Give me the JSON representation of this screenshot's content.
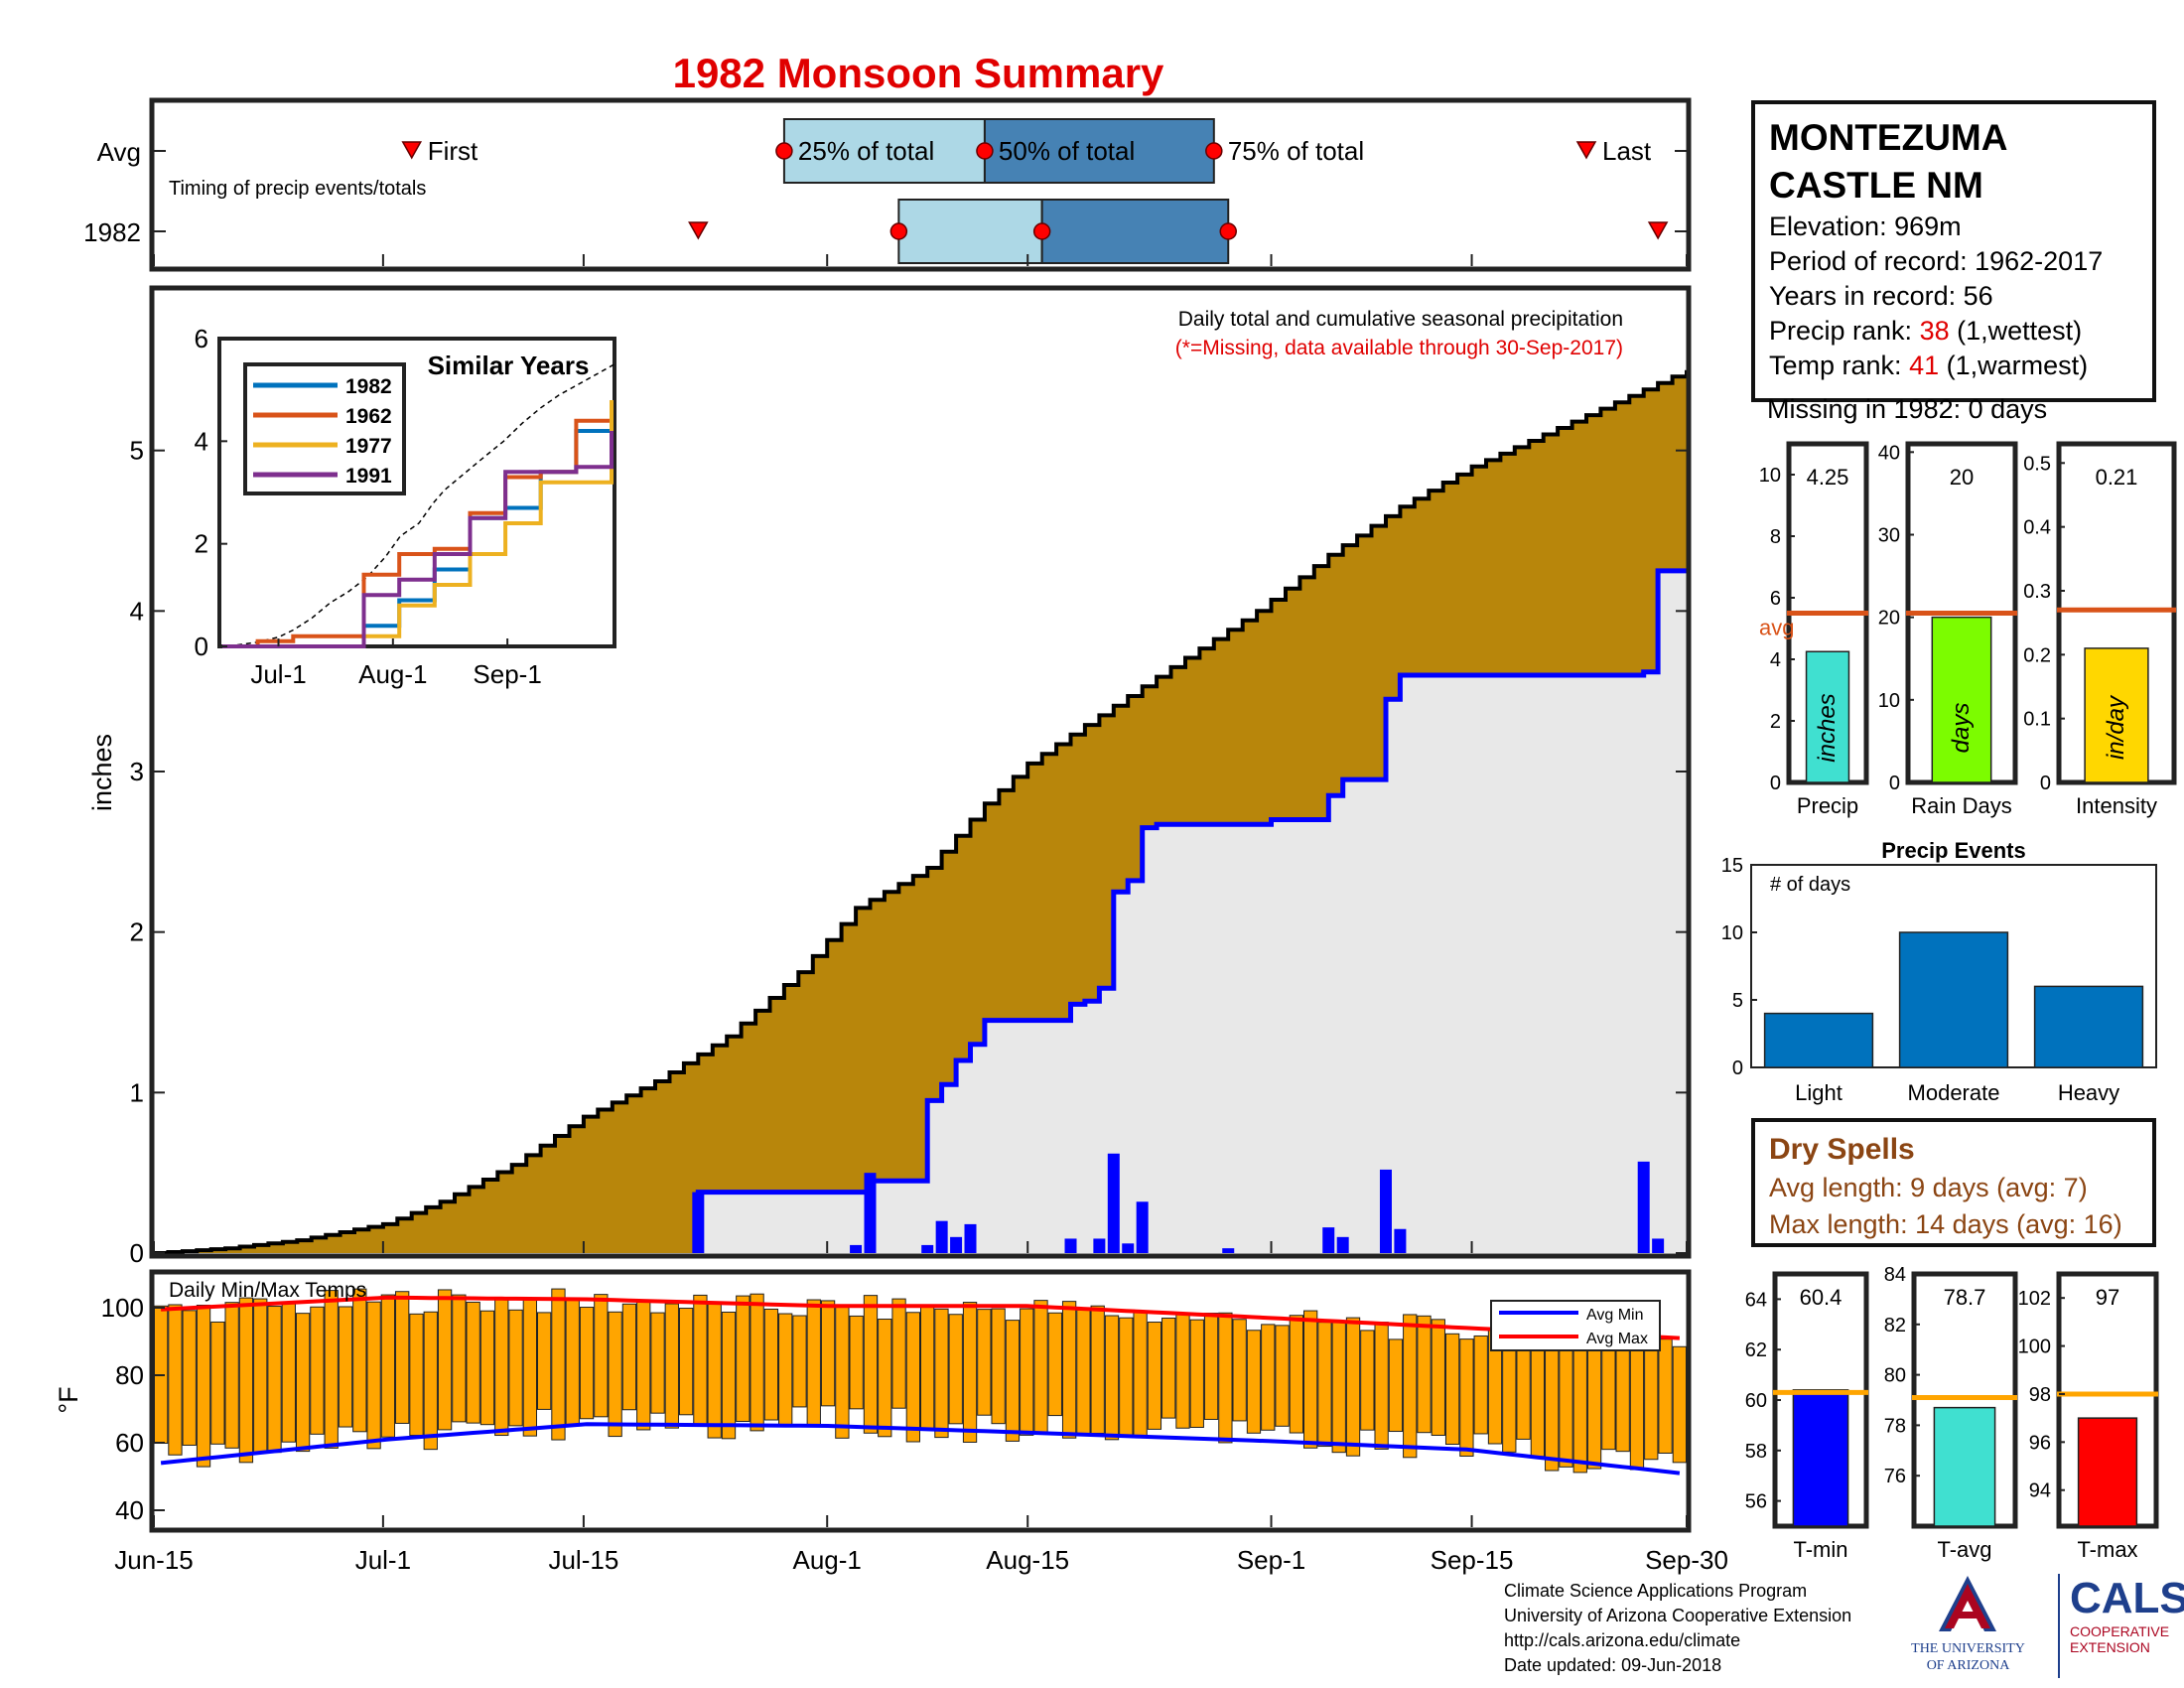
{
  "chart_title": "1982 Monsoon Summary",
  "timing": {
    "row_labels": [
      "Avg",
      "1982"
    ],
    "subtitle": "Timing of precip events/totals",
    "labels": {
      "first": "First",
      "p25": "25% of total",
      "p50": "50% of total",
      "p75": "75% of total",
      "last": "Last"
    },
    "avg": {
      "first": "Jul-3",
      "p25": "Jul-29",
      "p50": "Aug-12",
      "p75": "Aug-28",
      "last": "Sep-23"
    },
    "year": {
      "first": "Jul-23",
      "p25": "Aug-6",
      "p50": "Aug-16",
      "p75": "Aug-29",
      "last": "Sep-28"
    }
  },
  "station": {
    "name_line1": "MONTEZUMA",
    "name_line2": "CASTLE NM",
    "elevation": "Elevation: 969m",
    "period": "Period of record: 1962-2017",
    "years": "Years in record: 56",
    "precip_rank_label": "Precip rank: ",
    "precip_rank_value": "38",
    "precip_rank_note": " (1,wettest)",
    "temp_rank_label": "Temp rank: ",
    "temp_rank_value": "41",
    "temp_rank_note": " (1,warmest)",
    "missing": "Missing in 1982: 0 days"
  },
  "precip_panel": {
    "notes_line1": "Daily total and cumulative seasonal precipitation",
    "notes_line2": "(*=Missing, data available through 30-Sep-2017)",
    "ylabel": "inches",
    "x_ticks": [
      "Jun-15",
      "Jul-1",
      "Jul-15",
      "Aug-1",
      "Aug-15",
      "Sep-1",
      "Sep-15",
      "Sep-30"
    ]
  },
  "temp_panel": {
    "title": "Daily Min/Max Temps",
    "ylabel": "°F",
    "legend": [
      "Avg Min",
      "Avg Max"
    ]
  },
  "inset": {
    "title": "Similar Years",
    "x_ticks": [
      "Jul-1",
      "Aug-1",
      "Sep-1"
    ]
  },
  "small_bars": [
    {
      "label": "Precip",
      "value": 4.25,
      "display": "4.25",
      "avg": 5.5,
      "ymax": 11,
      "ticks": [
        0,
        2,
        4,
        6,
        8,
        10
      ],
      "unit": "inches",
      "color": "#40e0d0",
      "avg_label": "avg"
    },
    {
      "label": "Rain Days",
      "value": 20,
      "display": "20",
      "avg": 20.5,
      "ymax": 41,
      "ticks": [
        0,
        10,
        20,
        30,
        40
      ],
      "unit": "days",
      "color": "#7cfc00",
      "avg_label": ""
    },
    {
      "label": "Intensity",
      "value": 0.21,
      "display": "0.21",
      "avg": 0.27,
      "ymax": 0.53,
      "ticks": [
        0,
        0.1,
        0.2,
        0.3,
        0.4,
        0.5
      ],
      "unit": "in/day",
      "color": "#ffd700",
      "avg_label": ""
    }
  ],
  "events": {
    "title": "Precip Events",
    "ylabel": "# of days",
    "categories": [
      "Light",
      "Moderate",
      "Heavy"
    ],
    "values": [
      4,
      10,
      6
    ],
    "ylim": [
      0,
      15
    ]
  },
  "dry_spells": {
    "title": "Dry Spells",
    "avg_length": "Avg length: 9 days (avg: 7)",
    "max_length": "Max length: 14 days (avg: 16)"
  },
  "temp_bars": [
    {
      "label": "T-min",
      "value": 60.4,
      "display": "60.4",
      "avg": 60.3,
      "ylim": [
        55,
        65
      ],
      "ticks": [
        56,
        58,
        60,
        62,
        64
      ],
      "color": "#0000ff"
    },
    {
      "label": "T-avg",
      "value": 78.7,
      "display": "78.7",
      "avg": 79.1,
      "ylim": [
        74,
        84
      ],
      "ticks": [
        76,
        78,
        80,
        82,
        84
      ],
      "color": "#40e0d0"
    },
    {
      "label": "T-max",
      "value": 97,
      "display": "97",
      "avg": 98,
      "ylim": [
        92.5,
        103
      ],
      "ticks": [
        94,
        96,
        98,
        100,
        102
      ],
      "color": "#ff0000"
    }
  ],
  "footer": {
    "line1": "Climate Science Applications Program",
    "line2": "University of Arizona Cooperative Extension",
    "line3": "http://cals.arizona.edu/climate",
    "line4": " Date updated: 09-Jun-2018",
    "ua_text1": "THE UNIVERSITY",
    "ua_text2": "OF ARIZONA",
    "cals_text1": "CALS",
    "cals_text2": "COOPERATIVE",
    "cals_text3": "EXTENSION"
  },
  "colors": {
    "avg_cum_fill": "#b8860b",
    "obs_cum_fill": "#e8e8e8",
    "obs_line": "#0000ff",
    "daily_bar": "#0000ff",
    "temp_bar": "#ffa500",
    "avg_min": "#0000ff",
    "avg_max": "#ff0000",
    "q_light": "#add8e6",
    "q_dark": "#4682b4",
    "marker": "#ff0000"
  },
  "chart_data": [
    {
      "type": "area",
      "title": "Daily total and cumulative seasonal precipitation",
      "ylabel": "inches",
      "ylim": [
        0,
        6
      ],
      "x_range": [
        "Jun-15",
        "Sep-30"
      ],
      "series": [
        {
          "name": "avg-cumulative",
          "x": [
            "Jun-15",
            "Jun-20",
            "Jun-25",
            "Jul-1",
            "Jul-5",
            "Jul-10",
            "Jul-15",
            "Jul-20",
            "Jul-25",
            "Jul-30",
            "Aug-3",
            "Aug-8",
            "Aug-12",
            "Aug-15",
            "Aug-20",
            "Aug-25",
            "Aug-31",
            "Sep-5",
            "Sep-10",
            "Sep-15",
            "Sep-20",
            "Sep-25",
            "Sep-30"
          ],
          "values": [
            0.0,
            0.03,
            0.08,
            0.18,
            0.32,
            0.55,
            0.85,
            1.07,
            1.35,
            1.75,
            2.15,
            2.4,
            2.8,
            3.05,
            3.35,
            3.65,
            4.0,
            4.35,
            4.65,
            4.9,
            5.1,
            5.3,
            5.5
          ]
        },
        {
          "name": "1982-cumulative",
          "x": [
            "Jul-23",
            "Aug-3",
            "Aug-4",
            "Aug-8",
            "Aug-9",
            "Aug-10",
            "Aug-11",
            "Aug-12",
            "Aug-18",
            "Aug-19",
            "Aug-20",
            "Aug-21",
            "Aug-22",
            "Aug-23",
            "Aug-24",
            "Sep-1",
            "Sep-5",
            "Sep-6",
            "Sep-9",
            "Sep-10",
            "Sep-27",
            "Sep-28",
            "Sep-30"
          ],
          "values": [
            0.38,
            0.38,
            0.45,
            0.95,
            1.05,
            1.2,
            1.3,
            1.45,
            1.55,
            1.57,
            1.65,
            2.25,
            2.32,
            2.65,
            2.67,
            2.7,
            2.85,
            2.95,
            3.45,
            3.6,
            3.62,
            4.25,
            4.25
          ]
        }
      ],
      "daily": {
        "x": [
          "Jul-23",
          "Aug-3",
          "Aug-4",
          "Aug-8",
          "Aug-9",
          "Aug-10",
          "Aug-11",
          "Aug-18",
          "Aug-20",
          "Aug-21",
          "Aug-22",
          "Aug-23",
          "Aug-29",
          "Sep-5",
          "Sep-6",
          "Sep-9",
          "Sep-10",
          "Sep-27",
          "Sep-28"
        ],
        "values": [
          0.38,
          0.05,
          0.5,
          0.05,
          0.2,
          0.1,
          0.18,
          0.09,
          0.09,
          0.62,
          0.06,
          0.32,
          0.03,
          0.16,
          0.1,
          0.52,
          0.15,
          0.57,
          0.09
        ]
      }
    },
    {
      "type": "bar",
      "title": "Daily Min/Max Temps",
      "ylabel": "°F",
      "ylim": [
        35,
        110
      ],
      "series": [
        {
          "name": "Avg Min",
          "x": [
            "Jun-15",
            "Jul-1",
            "Jul-15",
            "Aug-1",
            "Aug-15",
            "Sep-1",
            "Sep-15",
            "Sep-30"
          ],
          "values": [
            54,
            61,
            65.5,
            65,
            63,
            60.5,
            58,
            51
          ]
        },
        {
          "name": "Avg Max",
          "x": [
            "Jun-15",
            "Jul-1",
            "Jul-15",
            "Aug-1",
            "Aug-15",
            "Sep-1",
            "Sep-15",
            "Sep-30"
          ],
          "values": [
            99.5,
            103,
            102.5,
            100.5,
            100.5,
            97,
            94,
            91
          ]
        }
      ]
    },
    {
      "type": "line",
      "title": "Similar Years",
      "ylim": [
        0,
        6
      ],
      "x_ticks": [
        "Jul-1",
        "Aug-1",
        "Sep-1"
      ],
      "series": [
        {
          "name": "1982",
          "color": "#0072bd",
          "values": [
            0,
            0,
            0,
            0,
            0.4,
            0.9,
            1.5,
            2.5,
            2.7,
            3.4,
            4.2,
            4.3
          ]
        },
        {
          "name": "1962",
          "color": "#d95319",
          "values": [
            0,
            0.1,
            0.2,
            0.2,
            1.4,
            1.8,
            1.9,
            2.6,
            3.3,
            3.4,
            4.4,
            4.8
          ]
        },
        {
          "name": "1977",
          "color": "#edb120",
          "values": [
            0,
            0,
            0,
            0,
            0.2,
            0.8,
            1.2,
            1.8,
            2.4,
            3.2,
            3.2,
            4.8
          ]
        },
        {
          "name": "1991",
          "color": "#7e2f8e",
          "values": [
            0,
            0,
            0,
            0,
            1.0,
            1.3,
            1.8,
            2.5,
            3.4,
            3.4,
            3.5,
            4.2
          ]
        }
      ]
    }
  ]
}
